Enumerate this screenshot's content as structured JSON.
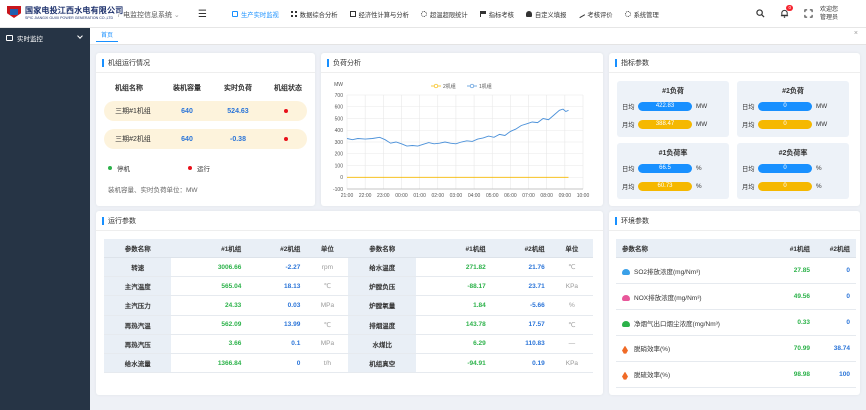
{
  "header": {
    "logo_cn": "国家电投江西水电有限公司",
    "logo_en": "SPIC JIANGXI GUIXI POWER GENERATION CO.,LTD",
    "system_title": "电监控信息系统",
    "nav": [
      {
        "label": "生产实时监视",
        "icon": "monitor-icon",
        "active": true
      },
      {
        "label": "数据综合分析",
        "icon": "grid-icon",
        "active": false
      },
      {
        "label": "经济性计算与分析",
        "icon": "calculator-icon",
        "active": false
      },
      {
        "label": "超温超限统计",
        "icon": "gear-icon",
        "active": false
      },
      {
        "label": "指标考核",
        "icon": "flag-icon",
        "active": false
      },
      {
        "label": "自定义填报",
        "icon": "user-icon",
        "active": false
      },
      {
        "label": "考核评价",
        "icon": "pen-icon",
        "active": false
      },
      {
        "label": "系统管理",
        "icon": "settings-icon",
        "active": false
      }
    ],
    "notification_count": "0",
    "welcome": "欢迎您",
    "username": "管理员"
  },
  "sidebar": {
    "items": [
      {
        "label": "实时监控"
      }
    ]
  },
  "tabs": [
    {
      "label": "首页"
    }
  ],
  "unit_status": {
    "title": "机组运行情况",
    "headers": [
      "机组名称",
      "装机容量",
      "实时负荷",
      "机组状态"
    ],
    "rows": [
      {
        "name": "三期#1机组",
        "capacity": "640",
        "load": "524.63",
        "status_color": "#e8101a"
      },
      {
        "name": "三期#2机组",
        "capacity": "640",
        "load": "-0.38",
        "status_color": "#e8101a"
      }
    ],
    "legend": [
      {
        "label": "停机",
        "color": "#2cb24a"
      },
      {
        "label": "运行",
        "color": "#e8101a"
      }
    ],
    "note": "装机容量、实时负荷单位：MW"
  },
  "load_analysis": {
    "title": "负荷分析"
  },
  "chart_data": {
    "type": "line",
    "ylabel": "MW",
    "ylim": [
      -100,
      700
    ],
    "yticks": [
      -100,
      0,
      100,
      200,
      300,
      400,
      500,
      600,
      700
    ],
    "xticks": [
      "21:00",
      "22:00",
      "23:00",
      "00:00",
      "01:00",
      "02:00",
      "03:00",
      "04:00",
      "05:00",
      "06:00",
      "07:00",
      "08:00",
      "09:00",
      "10:00"
    ],
    "xlim": [
      0,
      13
    ],
    "grid": true,
    "legend_position": "top",
    "series": [
      {
        "name": "2机组",
        "color": "#f5b800",
        "points": [
          [
            0,
            0
          ],
          [
            12.2,
            0
          ]
        ]
      },
      {
        "name": "1机组",
        "color": "#4a90d9",
        "points": [
          [
            0,
            330
          ],
          [
            0.3,
            320
          ],
          [
            0.6,
            330
          ],
          [
            1,
            325
          ],
          [
            1.4,
            330
          ],
          [
            1.8,
            340
          ],
          [
            2.1,
            320
          ],
          [
            2.4,
            290
          ],
          [
            2.7,
            300
          ],
          [
            3,
            285
          ],
          [
            3.3,
            265
          ],
          [
            3.6,
            270
          ],
          [
            3.9,
            265
          ],
          [
            4.2,
            280
          ],
          [
            4.5,
            295
          ],
          [
            4.8,
            285
          ],
          [
            5.1,
            290
          ],
          [
            5.4,
            300
          ],
          [
            5.7,
            290
          ],
          [
            6,
            285
          ],
          [
            6.3,
            300
          ],
          [
            6.6,
            310
          ],
          [
            6.9,
            305
          ],
          [
            7.2,
            325
          ],
          [
            7.5,
            335
          ],
          [
            7.8,
            350
          ],
          [
            8.1,
            340
          ],
          [
            8.4,
            365
          ],
          [
            8.7,
            355
          ],
          [
            9,
            390
          ],
          [
            9.3,
            410
          ],
          [
            9.6,
            440
          ],
          [
            9.9,
            455
          ],
          [
            10.2,
            470
          ],
          [
            10.5,
            465
          ],
          [
            10.8,
            500
          ],
          [
            11.1,
            490
          ],
          [
            11.4,
            530
          ],
          [
            11.7,
            570
          ],
          [
            11.9,
            580
          ],
          [
            12.05,
            560
          ],
          [
            12.2,
            570
          ]
        ]
      }
    ]
  },
  "indicators": {
    "title": "指标参数",
    "boxes": [
      {
        "title": "#1负荷",
        "rows": [
          {
            "label": "日均",
            "value": "422.83",
            "unit": "MW",
            "color": "#1890ff"
          },
          {
            "label": "月均",
            "value": "388.47",
            "unit": "MW",
            "color": "#f5b800"
          }
        ]
      },
      {
        "title": "#2负荷",
        "rows": [
          {
            "label": "日均",
            "value": "0",
            "unit": "MW",
            "color": "#1890ff"
          },
          {
            "label": "月均",
            "value": "0",
            "unit": "MW",
            "color": "#f5b800"
          }
        ]
      },
      {
        "title": "#1负荷率",
        "rows": [
          {
            "label": "日均",
            "value": "66.5",
            "unit": "%",
            "color": "#1890ff"
          },
          {
            "label": "月均",
            "value": "60.73",
            "unit": "%",
            "color": "#f5b800"
          }
        ]
      },
      {
        "title": "#2负荷率",
        "rows": [
          {
            "label": "日均",
            "value": "0",
            "unit": "%",
            "color": "#1890ff"
          },
          {
            "label": "月均",
            "value": "0",
            "unit": "%",
            "color": "#f5b800"
          }
        ]
      }
    ]
  },
  "run_params": {
    "title": "运行参数",
    "headers": [
      "参数名称",
      "#1机组",
      "#2机组",
      "单位",
      "参数名称",
      "#1机组",
      "#2机组",
      "单位"
    ],
    "rows": [
      [
        "转速",
        "3006.66",
        "-2.27",
        "rpm",
        "给水温度",
        "271.82",
        "21.76",
        "℃"
      ],
      [
        "主汽温度",
        "565.04",
        "18.13",
        "℃",
        "炉膛负压",
        "-88.17",
        "23.71",
        "KPa"
      ],
      [
        "主汽压力",
        "24.33",
        "0.03",
        "MPa",
        "炉膛氧量",
        "1.84",
        "-5.66",
        "%"
      ],
      [
        "再热汽温",
        "562.09",
        "13.99",
        "℃",
        "排烟温度",
        "143.78",
        "17.57",
        "℃"
      ],
      [
        "再热汽压",
        "3.66",
        "0.1",
        "MPa",
        "水煤比",
        "6.29",
        "110.83",
        "—"
      ],
      [
        "给水流量",
        "1366.84",
        "0",
        "t/h",
        "机组真空",
        "-94.91",
        "0.19",
        "KPa"
      ]
    ]
  },
  "env_params": {
    "title": "环境参数",
    "headers": [
      "参数名称",
      "#1机组",
      "#2机组"
    ],
    "rows": [
      {
        "icon": "cloud-blue-icon",
        "icon_color": "#3aa0e8",
        "name": "SO2排放浓度(mg/Nm³)",
        "v1": "27.85",
        "v2": "0"
      },
      {
        "icon": "cloud-pink-icon",
        "icon_color": "#e8579a",
        "name": "NOX排放浓度(mg/Nm³)",
        "v1": "49.56",
        "v2": "0"
      },
      {
        "icon": "chimney-icon",
        "icon_color": "#2cb24a",
        "name": "净烟气出口烟尘浓度(mg/Nm³)",
        "v1": "0.33",
        "v2": "0"
      },
      {
        "icon": "rocket-icon",
        "icon_color": "#f06a26",
        "name": "脱硝效率(%)",
        "v1": "70.99",
        "v2": "38.74"
      },
      {
        "icon": "rocket-icon",
        "icon_color": "#f06a26",
        "name": "脱硫效率(%)",
        "v1": "98.98",
        "v2": "100"
      }
    ]
  }
}
